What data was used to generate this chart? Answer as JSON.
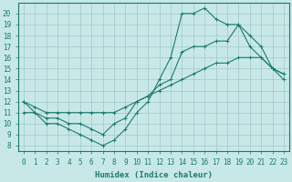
{
  "line1_x": [
    0,
    1,
    2,
    3,
    4,
    5,
    6,
    7,
    8,
    9,
    10,
    11,
    12,
    13,
    14,
    15,
    16,
    17,
    18,
    19,
    20,
    21,
    22,
    23
  ],
  "line1_y": [
    12,
    11,
    10,
    10,
    9.5,
    9,
    8.5,
    8,
    8.5,
    9.5,
    11,
    12,
    14,
    16,
    20,
    20,
    20.5,
    19.5,
    19,
    19,
    18,
    17,
    15,
    14
  ],
  "line2_x": [
    0,
    1,
    2,
    3,
    4,
    5,
    6,
    7,
    8,
    9,
    10,
    11,
    12,
    13,
    14,
    15,
    16,
    17,
    18,
    19,
    20,
    21,
    22,
    23
  ],
  "line2_y": [
    11,
    11,
    10.5,
    10.5,
    10,
    10,
    9.5,
    9,
    10,
    10.5,
    12,
    12.5,
    13.5,
    14,
    16.5,
    17,
    17,
    17.5,
    17.5,
    19,
    17,
    16,
    15,
    14.5
  ],
  "line3_x": [
    0,
    1,
    2,
    3,
    4,
    5,
    6,
    7,
    8,
    9,
    10,
    11,
    12,
    13,
    14,
    15,
    16,
    17,
    18,
    19,
    20,
    21,
    22,
    23
  ],
  "line3_y": [
    12,
    11.5,
    11,
    11,
    11,
    11,
    11,
    11,
    11,
    11.5,
    12,
    12.5,
    13,
    13.5,
    14,
    14.5,
    15,
    15.5,
    15.5,
    16,
    16,
    16,
    15,
    14.5
  ],
  "color": "#1a7a6e",
  "bg_color": "#c8e8e8",
  "grid_color": "#a0c8c8",
  "xlabel": "Humidex (Indice chaleur)",
  "xlim": [
    -0.5,
    23.5
  ],
  "ylim": [
    7.5,
    21
  ],
  "xticks": [
    0,
    1,
    2,
    3,
    4,
    5,
    6,
    7,
    8,
    9,
    10,
    11,
    12,
    13,
    14,
    15,
    16,
    17,
    18,
    19,
    20,
    21,
    22,
    23
  ],
  "yticks": [
    8,
    9,
    10,
    11,
    12,
    13,
    14,
    15,
    16,
    17,
    18,
    19,
    20
  ],
  "xlabel_fontsize": 6.5,
  "tick_fontsize": 5.5
}
